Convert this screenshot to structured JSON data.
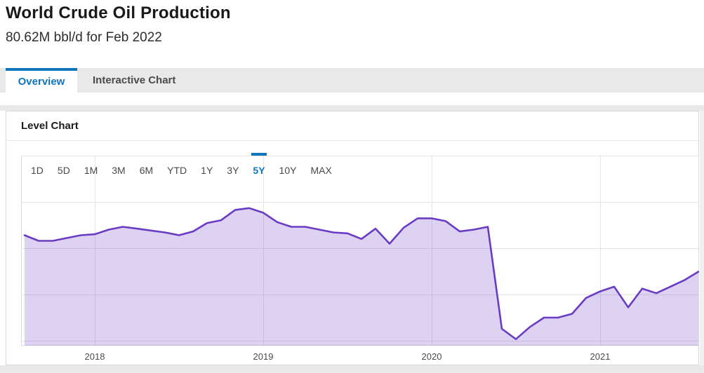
{
  "header": {
    "title": "World Crude Oil Production",
    "subtitle": "80.62M bbl/d for Feb 2022"
  },
  "tabs": [
    {
      "label": "Overview",
      "active": true
    },
    {
      "label": "Interactive Chart",
      "active": false
    }
  ],
  "panel": {
    "heading": "Level Chart"
  },
  "range_buttons": [
    {
      "label": "1D",
      "active": false
    },
    {
      "label": "5D",
      "active": false
    },
    {
      "label": "1M",
      "active": false
    },
    {
      "label": "3M",
      "active": false
    },
    {
      "label": "6M",
      "active": false
    },
    {
      "label": "YTD",
      "active": false
    },
    {
      "label": "1Y",
      "active": false
    },
    {
      "label": "3Y",
      "active": false
    },
    {
      "label": "5Y",
      "active": true
    },
    {
      "label": "10Y",
      "active": false
    },
    {
      "label": "MAX",
      "active": false
    }
  ],
  "colors": {
    "accent_blue": "#1175bc",
    "line_purple": "#6a3cc4",
    "fill_purple": "rgba(106,60,196,0.23)"
  },
  "chart_data": {
    "type": "area",
    "title": "Level Chart",
    "units": "M bbl/d",
    "series": [
      {
        "name": "World Crude Oil Production",
        "x": [
          "2017-08",
          "2017-09",
          "2017-10",
          "2017-11",
          "2017-12",
          "2018-01",
          "2018-02",
          "2018-03",
          "2018-04",
          "2018-05",
          "2018-06",
          "2018-07",
          "2018-08",
          "2018-09",
          "2018-10",
          "2018-11",
          "2018-12",
          "2019-01",
          "2019-02",
          "2019-03",
          "2019-04",
          "2019-05",
          "2019-06",
          "2019-07",
          "2019-08",
          "2019-09",
          "2019-10",
          "2019-11",
          "2019-12",
          "2020-01",
          "2020-02",
          "2020-03",
          "2020-04",
          "2020-05",
          "2020-06",
          "2020-07",
          "2020-08",
          "2020-09",
          "2020-10",
          "2020-11",
          "2020-12",
          "2021-01",
          "2021-02",
          "2021-03",
          "2021-04",
          "2021-05",
          "2021-06",
          "2021-07",
          "2021-08"
        ],
        "values": [
          81.3,
          80.7,
          80.7,
          81.0,
          81.3,
          81.4,
          81.9,
          82.2,
          82.0,
          81.8,
          81.6,
          81.3,
          81.7,
          82.6,
          82.9,
          84.0,
          84.2,
          83.7,
          82.7,
          82.2,
          82.2,
          81.9,
          81.6,
          81.5,
          80.9,
          82.0,
          80.4,
          82.1,
          83.1,
          83.1,
          82.8,
          81.7,
          81.9,
          82.2,
          71.3,
          70.2,
          71.5,
          72.5,
          72.5,
          72.9,
          74.6,
          75.3,
          75.8,
          73.6,
          75.6,
          75.1,
          75.8,
          76.5,
          77.4
        ]
      }
    ],
    "x_tick_labels": [
      "2018",
      "2019",
      "2020",
      "2021"
    ],
    "x_tick_month_indices": [
      5,
      17,
      29,
      41
    ],
    "ylim": [
      69.5,
      89.8
    ],
    "y_axis_visible": false,
    "grid": true,
    "legend": "none"
  }
}
